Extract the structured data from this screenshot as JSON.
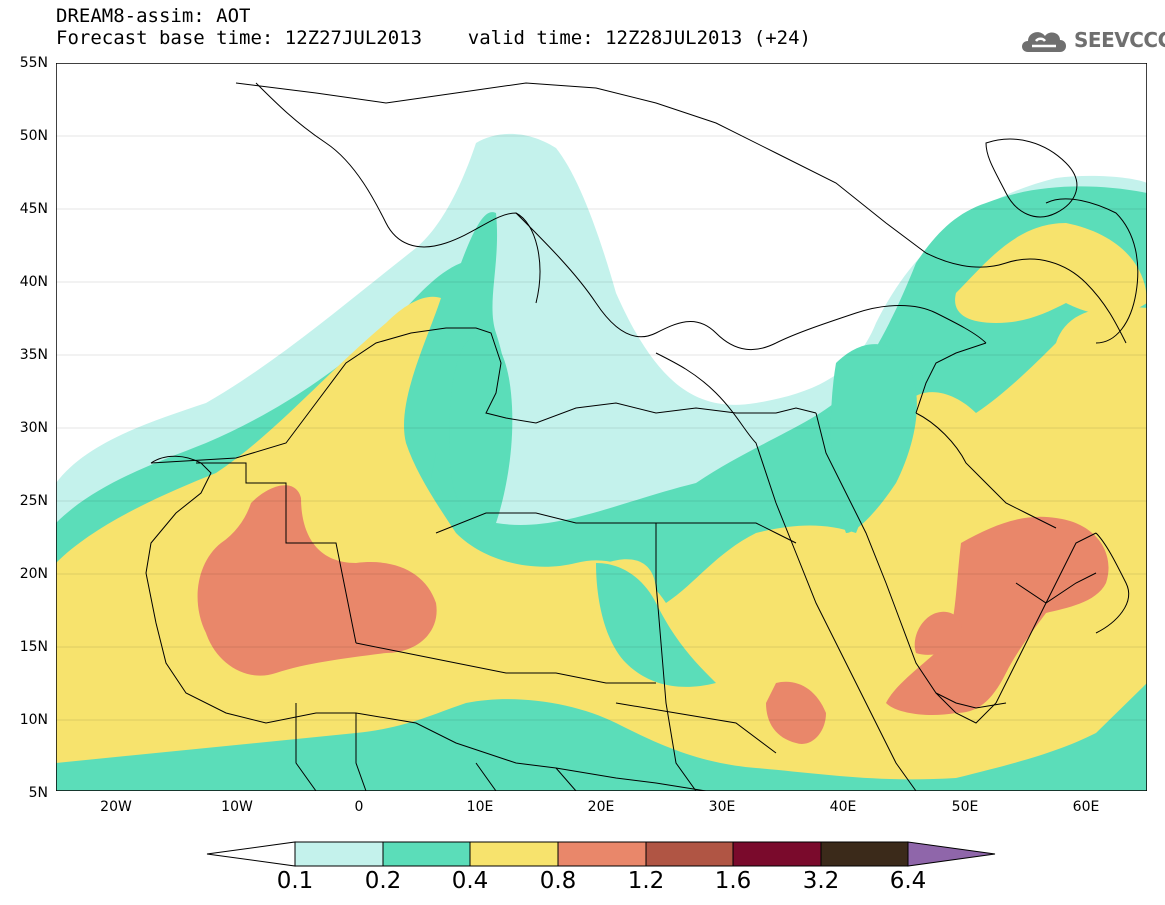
{
  "header": {
    "line1": "DREAM8-assim: AOT",
    "line2": "Forecast base time: 12Z27JUL2013    valid time: 12Z28JUL2013 (+24)"
  },
  "logo": {
    "text": "SEEVCCC",
    "icon": "cloud-logo-icon"
  },
  "map": {
    "lat_labels": [
      "55N",
      "50N",
      "45N",
      "40N",
      "35N",
      "30N",
      "25N",
      "20N",
      "15N",
      "10N",
      "5N"
    ],
    "lon_labels": [
      "20W",
      "10W",
      "0",
      "10E",
      "20E",
      "30E",
      "40E",
      "50E",
      "60E"
    ]
  },
  "colorbar": {
    "labels": [
      "0.1",
      "0.2",
      "0.4",
      "0.8",
      "1.2",
      "1.6",
      "3.2",
      "6.4"
    ],
    "colors": [
      "#c4f2ec",
      "#5bddb9",
      "#f7e36d",
      "#e9876a",
      "#b05544",
      "#7a0a2c",
      "#3b2a1a",
      "#8f66aa"
    ]
  }
}
